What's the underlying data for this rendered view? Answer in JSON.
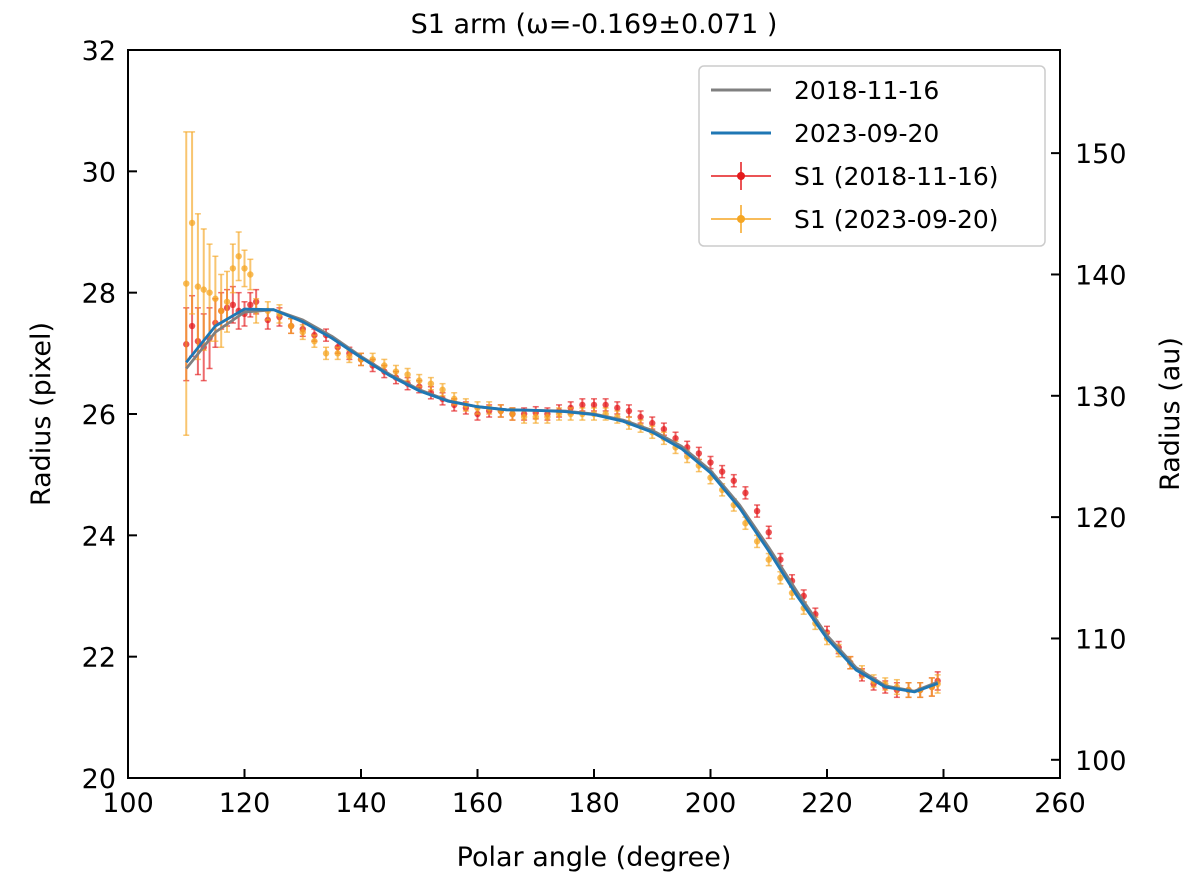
{
  "chart_data": {
    "type": "line",
    "title": "S1 arm (ω=-0.169±0.071 )",
    "xlabel": "Polar angle (degree)",
    "ylabel": "Radius (pixel)",
    "ylabel_right": "Radius (au)",
    "xlim": [
      100,
      260
    ],
    "ylim": [
      20,
      32
    ],
    "ylim_right_au": [
      98.5,
      158.5
    ],
    "xticks": [
      100,
      120,
      140,
      160,
      180,
      200,
      220,
      240,
      260
    ],
    "yticks": [
      20,
      22,
      24,
      26,
      28,
      30,
      32
    ],
    "yticks_right": [
      100,
      110,
      120,
      130,
      140,
      150
    ],
    "grid": false,
    "legend_position": "top-right",
    "legend": [
      {
        "label": "2018-11-16",
        "kind": "line",
        "color": "#808080"
      },
      {
        "label": "2023-09-20",
        "kind": "line",
        "color": "#1f77b4"
      },
      {
        "label": "S1 (2018-11-16)",
        "kind": "errorbar",
        "color": "#e41a1c"
      },
      {
        "label": "S1 (2023-09-20)",
        "kind": "errorbar",
        "color": "#f5a623"
      }
    ],
    "fits": [
      {
        "name": "2018-11-16",
        "color": "#808080",
        "x": [
          110,
          115,
          120,
          125,
          130,
          135,
          140,
          145,
          150,
          155,
          160,
          165,
          170,
          175,
          180,
          185,
          190,
          195,
          200,
          205,
          210,
          215,
          220,
          225,
          230,
          235,
          239
        ],
        "y": [
          26.75,
          27.35,
          27.68,
          27.72,
          27.55,
          27.28,
          26.95,
          26.65,
          26.4,
          26.22,
          26.12,
          26.07,
          26.06,
          26.05,
          26.0,
          25.9,
          25.73,
          25.47,
          25.07,
          24.5,
          23.8,
          23.05,
          22.35,
          21.82,
          21.52,
          21.43,
          21.58
        ]
      },
      {
        "name": "2023-09-20",
        "color": "#1f77b4",
        "x": [
          110,
          115,
          120,
          125,
          130,
          135,
          140,
          145,
          150,
          155,
          160,
          165,
          170,
          175,
          180,
          185,
          190,
          195,
          200,
          205,
          210,
          215,
          220,
          225,
          230,
          235,
          239
        ],
        "y": [
          26.85,
          27.45,
          27.73,
          27.72,
          27.52,
          27.25,
          26.93,
          26.63,
          26.38,
          26.21,
          26.12,
          26.07,
          26.06,
          26.04,
          25.99,
          25.88,
          25.7,
          25.43,
          25.03,
          24.45,
          23.74,
          22.98,
          22.3,
          21.78,
          21.5,
          21.42,
          21.56
        ]
      }
    ],
    "series": [
      {
        "name": "S1 (2018-11-16)",
        "color": "#e41a1c",
        "x": [
          110,
          111,
          112,
          113,
          114,
          115,
          116,
          117,
          118,
          119,
          120,
          121,
          122,
          124,
          126,
          128,
          130,
          132,
          134,
          136,
          138,
          140,
          142,
          144,
          146,
          148,
          150,
          152,
          154,
          156,
          158,
          160,
          162,
          164,
          166,
          168,
          170,
          172,
          174,
          176,
          178,
          180,
          182,
          184,
          186,
          188,
          190,
          192,
          194,
          196,
          198,
          200,
          202,
          204,
          206,
          208,
          210,
          212,
          214,
          216,
          218,
          220,
          222,
          224,
          226,
          228,
          230,
          232,
          234,
          236,
          238,
          239
        ],
        "y": [
          27.15,
          27.45,
          27.2,
          27.1,
          27.25,
          27.5,
          27.7,
          27.75,
          27.8,
          27.7,
          27.65,
          27.8,
          27.85,
          27.55,
          27.6,
          27.45,
          27.4,
          27.3,
          27.3,
          27.1,
          27.0,
          26.9,
          26.8,
          26.7,
          26.6,
          26.5,
          26.45,
          26.35,
          26.25,
          26.15,
          26.1,
          26.0,
          26.05,
          26.05,
          26.0,
          26.0,
          26.02,
          26.0,
          26.05,
          26.1,
          26.15,
          26.15,
          26.15,
          26.1,
          26.05,
          25.95,
          25.85,
          25.75,
          25.6,
          25.45,
          25.35,
          25.2,
          25.05,
          24.9,
          24.7,
          24.4,
          24.05,
          23.6,
          23.25,
          23.0,
          22.7,
          22.4,
          22.15,
          21.9,
          21.7,
          21.55,
          21.5,
          21.45,
          21.45,
          21.45,
          21.5,
          21.6
        ],
        "yerr": [
          0.6,
          0.5,
          0.55,
          0.55,
          0.5,
          0.4,
          0.3,
          0.3,
          0.3,
          0.3,
          0.2,
          0.2,
          0.2,
          0.15,
          0.15,
          0.12,
          0.12,
          0.1,
          0.1,
          0.1,
          0.1,
          0.1,
          0.1,
          0.1,
          0.1,
          0.1,
          0.1,
          0.1,
          0.1,
          0.1,
          0.1,
          0.1,
          0.1,
          0.1,
          0.1,
          0.1,
          0.1,
          0.1,
          0.1,
          0.1,
          0.1,
          0.1,
          0.1,
          0.1,
          0.1,
          0.1,
          0.1,
          0.1,
          0.1,
          0.1,
          0.1,
          0.1,
          0.1,
          0.1,
          0.1,
          0.1,
          0.1,
          0.1,
          0.1,
          0.1,
          0.1,
          0.1,
          0.1,
          0.1,
          0.1,
          0.1,
          0.1,
          0.12,
          0.12,
          0.12,
          0.15,
          0.15
        ]
      },
      {
        "name": "S1 (2023-09-20)",
        "color": "#f5a623",
        "x": [
          110,
          111,
          112,
          113,
          114,
          115,
          116,
          117,
          118,
          119,
          120,
          121,
          122,
          124,
          126,
          128,
          130,
          132,
          134,
          136,
          138,
          140,
          142,
          144,
          146,
          148,
          150,
          152,
          154,
          156,
          158,
          160,
          162,
          164,
          166,
          168,
          170,
          172,
          174,
          176,
          178,
          180,
          182,
          184,
          186,
          188,
          190,
          192,
          194,
          196,
          198,
          200,
          202,
          204,
          206,
          208,
          210,
          212,
          214,
          216,
          218,
          220,
          222,
          224,
          226,
          228,
          230,
          232,
          234,
          236,
          238,
          239
        ],
        "y": [
          28.15,
          29.15,
          28.1,
          28.05,
          28.0,
          27.9,
          27.7,
          27.85,
          28.4,
          28.6,
          28.4,
          28.3,
          27.7,
          27.7,
          27.65,
          27.45,
          27.35,
          27.2,
          27.0,
          27.0,
          26.95,
          26.9,
          26.9,
          26.8,
          26.7,
          26.65,
          26.55,
          26.5,
          26.4,
          26.25,
          26.15,
          26.1,
          26.1,
          26.05,
          26.0,
          25.95,
          25.95,
          25.95,
          26.0,
          26.0,
          26.0,
          26.0,
          26.0,
          25.95,
          25.85,
          25.8,
          25.7,
          25.6,
          25.45,
          25.3,
          25.15,
          24.95,
          24.75,
          24.5,
          24.2,
          23.9,
          23.6,
          23.3,
          23.05,
          22.8,
          22.55,
          22.3,
          22.1,
          21.9,
          21.75,
          21.6,
          21.55,
          21.5,
          21.45,
          21.45,
          21.5,
          21.55
        ],
        "yerr": [
          2.5,
          1.5,
          1.2,
          1.0,
          0.8,
          0.7,
          0.6,
          0.5,
          0.4,
          0.4,
          0.3,
          0.25,
          0.2,
          0.15,
          0.15,
          0.12,
          0.12,
          0.1,
          0.1,
          0.1,
          0.1,
          0.1,
          0.1,
          0.1,
          0.1,
          0.1,
          0.1,
          0.1,
          0.1,
          0.1,
          0.1,
          0.1,
          0.1,
          0.1,
          0.1,
          0.1,
          0.1,
          0.1,
          0.1,
          0.1,
          0.1,
          0.1,
          0.1,
          0.1,
          0.1,
          0.1,
          0.1,
          0.1,
          0.1,
          0.1,
          0.1,
          0.1,
          0.1,
          0.1,
          0.1,
          0.1,
          0.1,
          0.1,
          0.1,
          0.1,
          0.1,
          0.1,
          0.1,
          0.1,
          0.1,
          0.1,
          0.1,
          0.12,
          0.12,
          0.12,
          0.15,
          0.15
        ]
      }
    ]
  }
}
